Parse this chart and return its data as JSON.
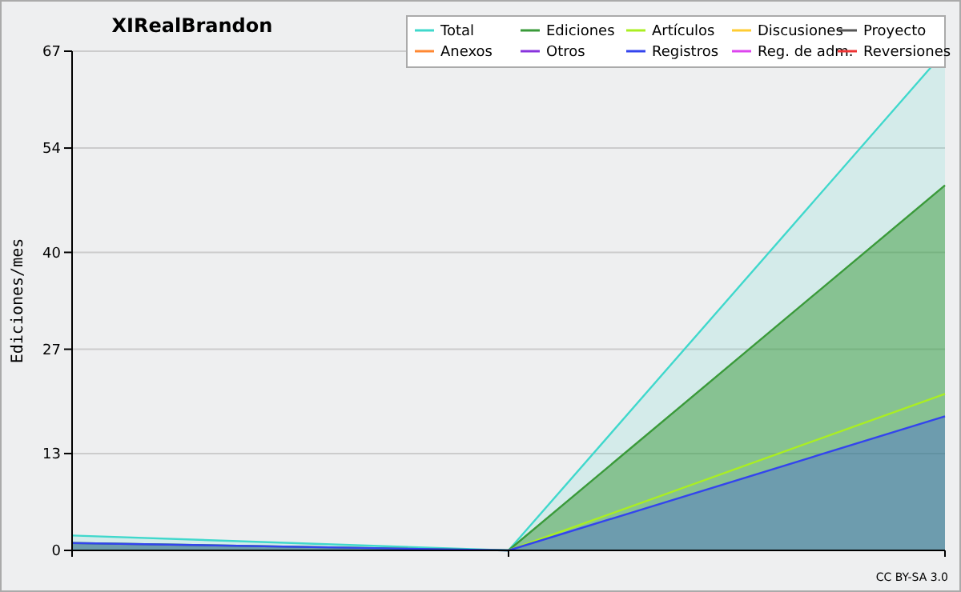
{
  "chart_data": {
    "type": "line",
    "title": "XIRealBrandon",
    "ylabel": "Ediciones/mes",
    "annotations": [
      "CC BY-SA 3.0"
    ],
    "categories": [
      null,
      null,
      null
    ],
    "ylim": [
      0,
      67
    ],
    "yticks": [
      0,
      13,
      27,
      40,
      54,
      67
    ],
    "grid": "y",
    "legend": "top right",
    "marker": "none",
    "series": [
      {
        "name": "Total",
        "type": "area",
        "color": "#40d8cc",
        "values": [
          2,
          0,
          67
        ]
      },
      {
        "name": "Ediciones",
        "type": "area",
        "color": "#3a9a3a",
        "values": [
          1,
          0,
          49
        ]
      },
      {
        "name": "Artículos",
        "color": "#aaee22",
        "values": [
          null,
          0,
          21
        ]
      },
      {
        "name": "Discusiones",
        "color": "#ffcc33",
        "values": [
          null,
          null,
          null
        ]
      },
      {
        "name": "Proyecto",
        "color": "#555555",
        "values": [
          null,
          null,
          null
        ]
      },
      {
        "name": "Anexos",
        "color": "#ff8833",
        "values": [
          null,
          null,
          null
        ]
      },
      {
        "name": "Otros",
        "color": "#8833dd",
        "values": [
          null,
          null,
          null
        ]
      },
      {
        "name": "Registros",
        "type": "area",
        "color": "#3344ee",
        "values": [
          1,
          0,
          18
        ]
      },
      {
        "name": "Reg. de adm.",
        "color": "#dd44ee",
        "values": [
          null,
          null,
          null
        ]
      },
      {
        "name": "Reversiones",
        "color": "#ee3333",
        "values": [
          null,
          null,
          null
        ]
      }
    ]
  }
}
